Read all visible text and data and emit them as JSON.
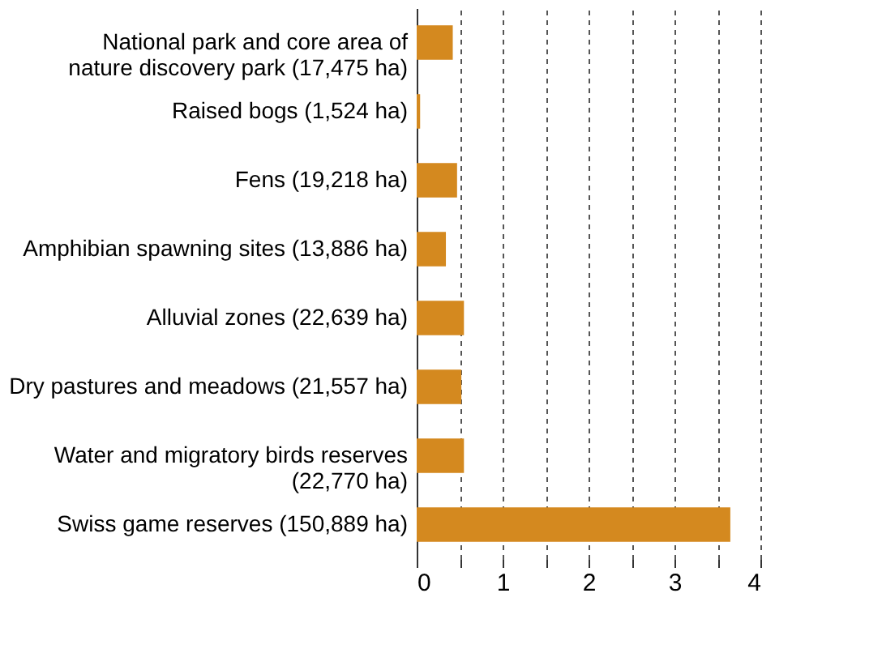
{
  "chart_data": {
    "type": "bar",
    "orientation": "horizontal",
    "categories": [
      "National park and core area of\nnature discovery park (17,475 ha)",
      "Raised bogs (1,524 ha)",
      "Fens (19,218 ha)",
      "Amphibian spawning sites (13,886 ha)",
      "Alluvial zones (22,639 ha)",
      "Dry pastures and meadows (21,557 ha)",
      "Water and migratory birds reserves\n(22,770 ha)",
      "Swiss game reserves (150,889 ha)"
    ],
    "values": [
      0.42,
      0.04,
      0.47,
      0.34,
      0.55,
      0.52,
      0.55,
      3.65
    ],
    "color": "#d4891f",
    "xlim": [
      0,
      4
    ],
    "xticks": [
      0,
      {
        "value": 0.5,
        "label": null
      },
      1,
      {
        "value": 1.5,
        "label": null
      },
      2,
      {
        "value": 2.5,
        "label": null
      },
      3,
      {
        "value": 3.5,
        "label": null
      },
      4
    ],
    "grid": "x"
  }
}
